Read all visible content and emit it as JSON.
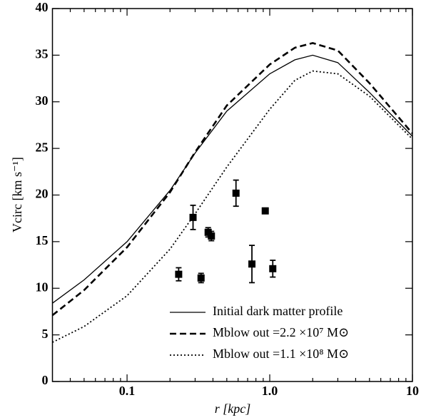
{
  "chart_data": {
    "type": "line",
    "x_label": "r [kpc]",
    "y_label": "Vcirc [km s⁻¹]",
    "log_x": true,
    "xlim": [
      0.03,
      10
    ],
    "ylim": [
      0,
      40
    ],
    "xticks": [
      0.1,
      {
        "value": 1,
        "label": "1.0"
      },
      10
    ],
    "xminorticks": [
      0.04,
      0.05,
      0.06,
      0.07,
      0.08,
      0.09,
      0.2,
      0.3,
      0.4,
      0.5,
      0.6,
      0.7,
      0.8,
      0.9,
      2,
      3,
      4,
      5,
      6,
      7,
      8,
      9
    ],
    "yticks": [
      0,
      5,
      10,
      15,
      20,
      25,
      30,
      35,
      40
    ],
    "legend_position": "lower right",
    "x": [
      0.03,
      0.05,
      0.1,
      0.2,
      0.3,
      0.5,
      1,
      1.5,
      2,
      3,
      5,
      10
    ],
    "series": [
      {
        "name": "Initial dark matter profile",
        "color": "#000000",
        "dash": "solid",
        "values": [
          8.4,
          10.9,
          15,
          20.5,
          24.5,
          29,
          33,
          34.5,
          35,
          34.2,
          31,
          26.3
        ]
      },
      {
        "name": "Mblow out =2.2 ×10⁷ M⊙",
        "color": "#000000",
        "dash": "dashed",
        "values": [
          7.1,
          9.8,
          14.4,
          20.3,
          24.6,
          29.6,
          34,
          35.8,
          36.3,
          35.5,
          32,
          26.6
        ]
      },
      {
        "name": "Mblow out =1.1 ×10⁸ M⊙",
        "color": "#000000",
        "dash": "dotted",
        "values": [
          4.2,
          5.9,
          9.2,
          14.2,
          18,
          23,
          29.2,
          32.3,
          33.3,
          33,
          30.6,
          26
        ]
      }
    ],
    "points": {
      "color": "#000000",
      "x": [
        0.23,
        0.29,
        0.33,
        0.37,
        0.39,
        0.58,
        0.75,
        0.93,
        1.05
      ],
      "values": [
        11.5,
        17.6,
        11.1,
        16,
        15.6,
        20.2,
        12.6,
        18.3,
        12.1
      ],
      "errors": [
        0.7,
        1.3,
        0.5,
        0.5,
        0.5,
        1.4,
        2,
        0.3,
        0.9
      ]
    }
  }
}
